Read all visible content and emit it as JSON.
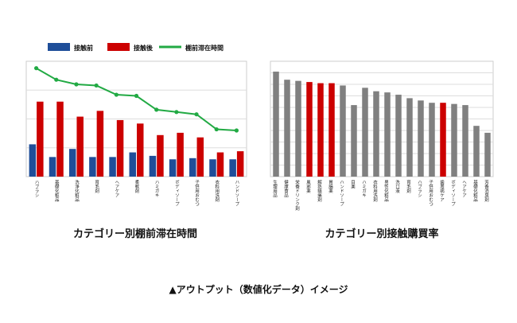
{
  "left_caption": "カテゴリー別棚前滞在時間",
  "right_caption": "カテゴリー別接触購買率",
  "footer": "▲アウトプット（数値化データ）イメージ",
  "colors": {
    "before": "#1f4e99",
    "after": "#cc0000",
    "line": "#22aa44",
    "gray": "#808080",
    "grid": "#dddddd"
  },
  "chart_data": [
    {
      "type": "bar",
      "title": "カテゴリー別棚前滞在時間",
      "legend_position": "top",
      "grid": true,
      "categories": [
        "ハブラシ",
        "基礎化粧品",
        "洗浄化粧品",
        "育毛剤",
        "ヘアケア",
        "柔軟剤",
        "ハミガキ",
        "ボディソープ",
        "子供用おむつ",
        "衣料用洗剤",
        "ハンドソープ"
      ],
      "ylim": [
        0,
        100
      ],
      "series": [
        {
          "name": "接触前",
          "type": "bar",
          "values": [
            28,
            17,
            24,
            17,
            17,
            21,
            18,
            15,
            16,
            15,
            15
          ]
        },
        {
          "name": "接触後",
          "type": "bar",
          "values": [
            65,
            65,
            52,
            57,
            49,
            46,
            36,
            38,
            34,
            21,
            22
          ]
        },
        {
          "name": "棚前滞在時間",
          "type": "line",
          "values": [
            94,
            84,
            80,
            79,
            71,
            70,
            58,
            56,
            54,
            41,
            40
          ]
        }
      ]
    },
    {
      "type": "bar",
      "title": "カテゴリー別接触購買率",
      "grid": true,
      "categories": [
        "生理用品",
        "健康食品",
        "栄養ドリンク剤",
        "風邪薬",
        "解熱鎮痛剤",
        "胃腸薬",
        "ハンドソープ",
        "目薬",
        "ハミガキ",
        "衣料用洗剤",
        "男性化粧品",
        "洗口液",
        "育毛剤",
        "ハブラシ",
        "子供用おむつ",
        "歯周病ケア",
        "ボディソープ",
        "ヘアケア",
        "基礎化粧品",
        "芳香消臭剤"
      ],
      "highlighted": [
        3,
        4,
        5,
        15
      ],
      "ylim": [
        0,
        100
      ],
      "values": [
        91,
        84,
        83,
        82,
        81,
        81,
        79,
        62,
        77,
        74,
        73,
        71,
        68,
        66,
        64,
        64,
        63,
        62,
        44,
        38
      ]
    }
  ]
}
